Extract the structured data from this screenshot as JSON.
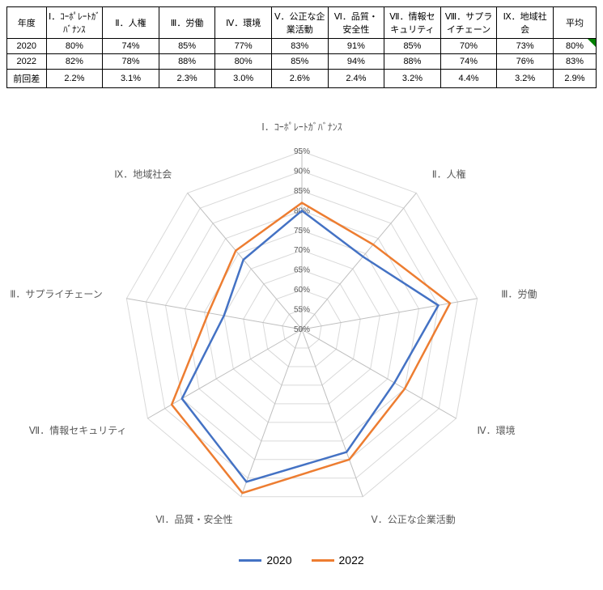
{
  "table": {
    "headers": {
      "year": "年度",
      "categories": [
        "Ⅰ．ｺｰﾎﾟﾚｰﾄｶﾞﾊﾞﾅﾝｽ",
        "Ⅱ．人権",
        "Ⅲ．労働",
        "Ⅳ．環境",
        "Ⅴ．公正な企業活動",
        "Ⅵ．品質・安全性",
        "Ⅶ．情報セキュリティ",
        "Ⅷ．サプライチェーン",
        "Ⅸ．地域社会"
      ],
      "avg": "平均"
    },
    "rows": [
      {
        "year": "2020",
        "values": [
          "80%",
          "74%",
          "85%",
          "77%",
          "83%",
          "91%",
          "85%",
          "70%",
          "73%"
        ],
        "avg": "80%"
      },
      {
        "year": "2022",
        "values": [
          "82%",
          "78%",
          "88%",
          "80%",
          "85%",
          "94%",
          "88%",
          "74%",
          "76%"
        ],
        "avg": "83%"
      },
      {
        "year": "前回差",
        "values": [
          "2.2%",
          "3.1%",
          "2.3%",
          "3.0%",
          "2.6%",
          "2.4%",
          "3.2%",
          "4.4%",
          "3.2%"
        ],
        "avg": "2.9%"
      }
    ]
  },
  "radar": {
    "type": "radar",
    "categories": [
      "Ⅰ．ｺｰﾎﾟﾚｰﾄｶﾞﾊﾞﾅﾝｽ",
      "Ⅱ．人権",
      "Ⅲ．労働",
      "Ⅳ．環境",
      "Ⅴ．公正な企業活動",
      "Ⅵ．品質・安全性",
      "Ⅶ．情報セキュリティ",
      "Ⅷ．サプライチェーン",
      "Ⅸ．地域社会"
    ],
    "series": [
      {
        "name": "2020",
        "color": "#4472c4",
        "values": [
          80,
          74,
          85,
          77,
          83,
          91,
          85,
          70,
          73
        ],
        "line_width": 2.5
      },
      {
        "name": "2022",
        "color": "#ed7d31",
        "values": [
          82,
          78,
          88,
          80,
          85,
          94,
          88,
          74,
          76
        ],
        "line_width": 2.5
      }
    ],
    "scale": {
      "min": 50,
      "max": 95,
      "step": 5,
      "unit": "%"
    },
    "grid_color": "#d9d9d9",
    "axis_color": "#bfbfbf",
    "text_color": "#595959",
    "background_color": "#ffffff",
    "legend_fontsize": 14,
    "axis_fontsize": 12,
    "tick_fontsize": 10
  }
}
